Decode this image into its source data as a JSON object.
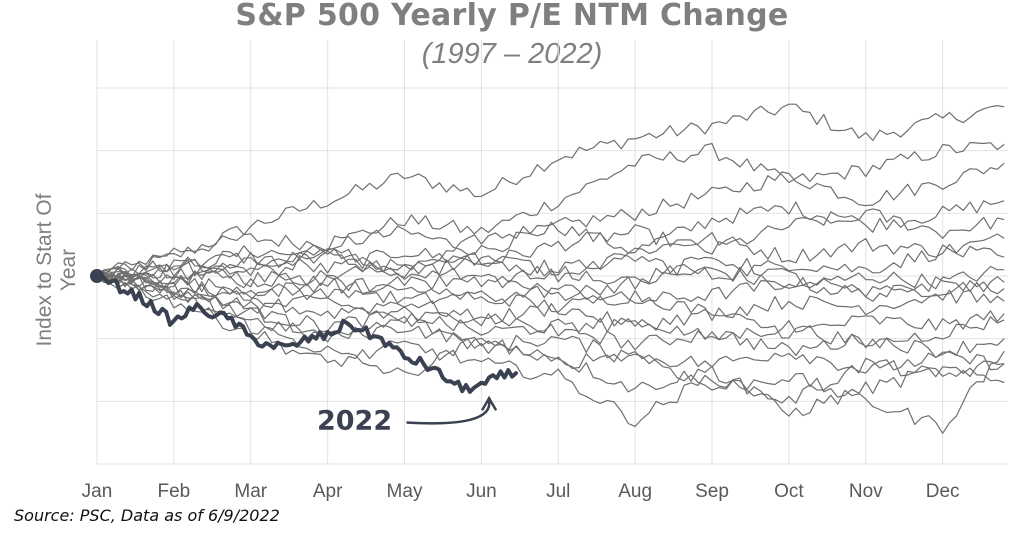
{
  "chart_data": {
    "type": "line",
    "title": "S&P 500 Yearly P/E NTM Change",
    "subtitle": "(1997 – 2022)",
    "ylabel": "Index to Start Of Year",
    "xlabel": "",
    "x_tick_labels": [
      "Jan",
      "Feb",
      "Mar",
      "Apr",
      "May",
      "Jun",
      "Jul",
      "Aug",
      "Sep",
      "Oct",
      "Nov",
      "Dec"
    ],
    "ylim": [
      70,
      130
    ],
    "y_tick_labels_shown": false,
    "grid": true,
    "legend": "none",
    "annotations": [
      {
        "text": "2022",
        "target_month": 5.1
      }
    ],
    "source_note": "Source: PSC, Data as of 6/9/2022",
    "series_2022": {
      "months": [
        0,
        0.25,
        0.5,
        0.75,
        1.0,
        1.25,
        1.5,
        1.75,
        2.0,
        2.25,
        2.5,
        2.75,
        3.0,
        3.25,
        3.5,
        3.75,
        4.0,
        4.25,
        4.5,
        4.75,
        5.0,
        5.25,
        5.45
      ],
      "values": [
        100,
        98.5,
        97,
        95,
        92.5,
        95,
        94,
        93,
        90,
        89,
        88.5,
        90,
        90.5,
        92.5,
        91,
        89.5,
        87,
        86,
        84,
        82,
        82.5,
        84,
        84.5
      ]
    },
    "historical_paths": [
      {
        "months": [
          0,
          1,
          2,
          3,
          4,
          5,
          6,
          7,
          8,
          9,
          10,
          11,
          11.8
        ],
        "values": [
          100,
          103,
          108,
          112,
          116,
          113,
          119,
          122,
          124,
          127,
          122,
          125,
          127
        ]
      },
      {
        "months": [
          0,
          1,
          2,
          3,
          4,
          5,
          6,
          7,
          8,
          9,
          10,
          11,
          11.8
        ],
        "values": [
          100,
          104,
          106,
          105,
          109,
          107,
          112,
          118,
          120,
          115,
          117,
          120,
          121
        ]
      },
      {
        "months": [
          0,
          1,
          2,
          3,
          4,
          5,
          6,
          7,
          8,
          9,
          10,
          11,
          11.8
        ],
        "values": [
          100,
          102,
          101,
          105,
          107,
          104,
          108,
          110,
          113,
          116,
          112,
          115,
          118
        ]
      },
      {
        "months": [
          0,
          1,
          2,
          3,
          4,
          5,
          6,
          7,
          8,
          9,
          10,
          11,
          11.8
        ],
        "values": [
          100,
          101,
          104,
          103,
          100,
          106,
          108,
          104,
          109,
          111,
          108,
          110,
          112
        ]
      },
      {
        "months": [
          0,
          1,
          2,
          3,
          4,
          5,
          6,
          7,
          8,
          9,
          10,
          11,
          11.8
        ],
        "values": [
          100,
          102,
          103,
          101,
          104,
          102,
          105,
          107,
          104,
          108,
          110,
          107,
          109
        ]
      },
      {
        "months": [
          0,
          1,
          2,
          3,
          4,
          5,
          6,
          7,
          8,
          9,
          10,
          11,
          11.8
        ],
        "values": [
          100,
          99,
          102,
          104,
          101,
          103,
          100,
          104,
          106,
          103,
          105,
          104,
          106
        ]
      },
      {
        "months": [
          0,
          1,
          2,
          3,
          4,
          5,
          6,
          7,
          8,
          9,
          10,
          11,
          11.8
        ],
        "values": [
          100,
          101,
          99,
          100,
          102,
          99,
          101,
          103,
          100,
          102,
          101,
          104,
          103
        ]
      },
      {
        "months": [
          0,
          1,
          2,
          3,
          4,
          5,
          6,
          7,
          8,
          9,
          10,
          11,
          11.8
        ],
        "values": [
          100,
          100,
          101,
          99,
          98,
          100,
          97,
          99,
          101,
          98,
          100,
          99,
          101
        ]
      },
      {
        "months": [
          0,
          1,
          2,
          3,
          4,
          5,
          6,
          7,
          8,
          9,
          10,
          11,
          11.8
        ],
        "values": [
          100,
          99,
          98,
          97,
          99,
          96,
          98,
          96,
          97,
          99,
          97,
          98,
          99
        ]
      },
      {
        "months": [
          0,
          1,
          2,
          3,
          4,
          5,
          6,
          7,
          8,
          9,
          10,
          11,
          11.8
        ],
        "values": [
          100,
          98,
          97,
          99,
          96,
          97,
          95,
          97,
          94,
          96,
          95,
          97,
          96
        ]
      },
      {
        "months": [
          0,
          1,
          2,
          3,
          4,
          5,
          6,
          7,
          8,
          9,
          10,
          11,
          11.8
        ],
        "values": [
          100,
          99,
          96,
          94,
          96,
          93,
          95,
          92,
          94,
          91,
          93,
          92,
          94
        ]
      },
      {
        "months": [
          0,
          1,
          2,
          3,
          4,
          5,
          6,
          7,
          8,
          9,
          10,
          11,
          11.8
        ],
        "values": [
          100,
          97,
          95,
          96,
          93,
          94,
          91,
          93,
          90,
          92,
          89,
          91,
          93
        ]
      },
      {
        "months": [
          0,
          1,
          2,
          3,
          4,
          5,
          6,
          7,
          8,
          9,
          10,
          11,
          11.8
        ],
        "values": [
          100,
          98,
          94,
          92,
          94,
          91,
          92,
          89,
          91,
          88,
          90,
          88,
          90
        ]
      },
      {
        "months": [
          0,
          1,
          2,
          3,
          4,
          5,
          6,
          7,
          8,
          9,
          10,
          11,
          11.8
        ],
        "values": [
          100,
          97,
          93,
          90,
          92,
          89,
          90,
          87,
          86,
          88,
          85,
          87,
          86
        ]
      },
      {
        "months": [
          0,
          1,
          2,
          3,
          4,
          5,
          6,
          7,
          8,
          9,
          10,
          11,
          11.8
        ],
        "values": [
          100,
          97,
          92,
          88,
          84,
          90,
          86,
          88,
          82,
          84,
          80,
          76,
          88
        ]
      },
      {
        "months": [
          0,
          1,
          2,
          3,
          4,
          5,
          6,
          7,
          8,
          9,
          10,
          11,
          11.8
        ],
        "values": [
          100,
          98,
          95,
          90,
          93,
          89,
          87,
          82,
          85,
          78,
          82,
          85,
          83
        ]
      },
      {
        "months": [
          0,
          1,
          2,
          3,
          4,
          5,
          6,
          7,
          8,
          9,
          10,
          11,
          11.8
        ],
        "values": [
          100,
          96,
          91,
          86,
          89,
          86,
          84,
          77,
          84,
          80,
          86,
          84,
          86
        ]
      },
      {
        "months": [
          0,
          1,
          2,
          3,
          4,
          5,
          6,
          7,
          8,
          9,
          10,
          11,
          11.8
        ],
        "values": [
          100,
          102,
          99,
          104,
          100,
          103,
          101,
          99,
          103,
          100,
          97,
          99,
          98
        ]
      }
    ]
  },
  "colors": {
    "title": "#7f7f7f",
    "grid": "#e2e2e2",
    "history_line": "#6f6f6f",
    "line_2022": "#3a4150",
    "axis_text": "#595959",
    "source": "#111111"
  }
}
